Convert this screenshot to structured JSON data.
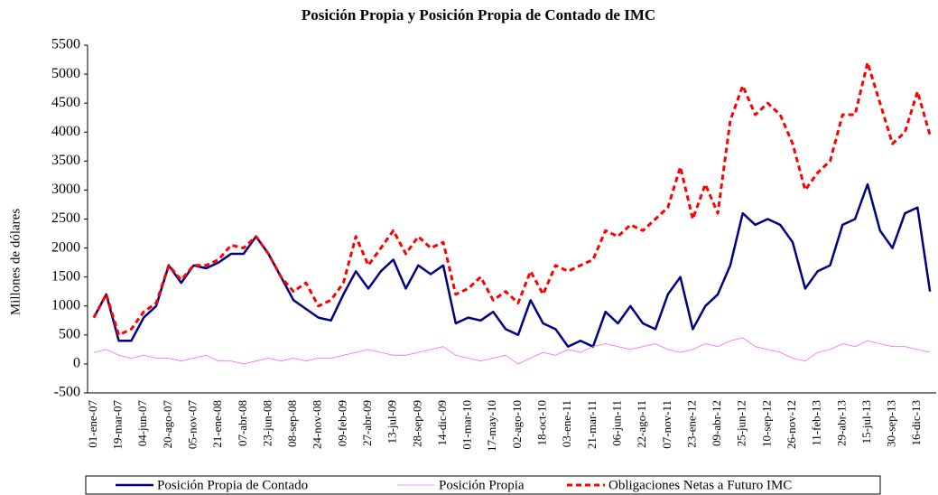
{
  "chart_data": {
    "type": "line",
    "title": "Posición Propia y Posición Propia de Contado de IMC",
    "y_label": "Millones de dólares",
    "categories": [
      "01-ene-07",
      null,
      "19-mar-07",
      null,
      "04-jun-07",
      null,
      "20-ago-07",
      null,
      "05-nov-07",
      null,
      "21-ene-08",
      null,
      "07-abr-08",
      null,
      "23-jun-08",
      null,
      "08-sep-08",
      null,
      "24-nov-08",
      null,
      "09-feb-09",
      null,
      "27-abr-09",
      null,
      "13-jul-09",
      null,
      "28-sep-09",
      null,
      "14-dic-09",
      null,
      "01-mar-10",
      null,
      "17-may-10",
      null,
      "02-ago-10",
      null,
      "18-oct-10",
      null,
      "03-ene-11",
      null,
      "21-mar-11",
      null,
      "06-jun-11",
      null,
      "22-ago-11",
      null,
      "07-nov-11",
      null,
      "23-ene-12",
      null,
      "09-abr-12",
      null,
      "25-jun-12",
      null,
      "10-sep-12",
      null,
      "26-nov-12",
      null,
      "11-feb-13",
      null,
      "29-abr-13",
      null,
      "15-jul-13",
      null,
      "30-sep-13",
      null,
      "16-dic-13",
      null
    ],
    "series": [
      {
        "name": "Posición Propia de Contado",
        "color": "#000080",
        "values": [
          800,
          1200,
          400,
          400,
          800,
          1000,
          1700,
          1400,
          1700,
          1650,
          1750,
          1900,
          1900,
          2200,
          1900,
          1500,
          1100,
          950,
          800,
          750,
          1200,
          1600,
          1300,
          1600,
          1800,
          1300,
          1700,
          1550,
          1700,
          700,
          800,
          750,
          900,
          600,
          500,
          1100,
          700,
          600,
          300,
          400,
          300,
          900,
          700,
          1000,
          700,
          600,
          1200,
          1500,
          600,
          1000,
          1200,
          1700,
          2600,
          2400,
          2500,
          2400,
          2100,
          1300,
          1600,
          1700,
          2400,
          2500,
          3100,
          2300,
          2000,
          2600,
          2700,
          1250
        ]
      },
      {
        "name": "Posición Propia",
        "color": "#ff66ff",
        "values": [
          200,
          250,
          150,
          100,
          150,
          100,
          100,
          50,
          100,
          150,
          50,
          50,
          0,
          50,
          100,
          50,
          100,
          50,
          100,
          100,
          150,
          200,
          250,
          200,
          150,
          150,
          200,
          250,
          300,
          150,
          100,
          50,
          100,
          150,
          0,
          100,
          200,
          150,
          250,
          200,
          300,
          350,
          300,
          250,
          300,
          350,
          250,
          200,
          250,
          350,
          300,
          400,
          450,
          300,
          250,
          200,
          100,
          50,
          200,
          250,
          350,
          300,
          400,
          350,
          300,
          300,
          250,
          200
        ]
      },
      {
        "name": "Obligaciones Netas a Futuro IMC",
        "color": "#ff0000",
        "values": [
          800,
          1200,
          500,
          600,
          900,
          1050,
          1700,
          1450,
          1700,
          1700,
          1800,
          2050,
          2000,
          2200,
          1900,
          1500,
          1250,
          1400,
          1000,
          1100,
          1400,
          2200,
          1700,
          2000,
          2300,
          1900,
          2200,
          2000,
          2100,
          1200,
          1300,
          1500,
          1100,
          1250,
          1050,
          1600,
          1200,
          1700,
          1600,
          1700,
          1800,
          2300,
          2200,
          2400,
          2300,
          2500,
          2700,
          3400,
          2500,
          3100,
          2600,
          4200,
          4800,
          4300,
          4500,
          4300,
          3800,
          3000,
          3300,
          3500,
          4300,
          4300,
          5200,
          4500,
          3800,
          4000,
          4700,
          3950
        ]
      }
    ],
    "ylim": [
      -500,
      5500
    ],
    "yticks": [
      -500,
      0,
      500,
      1000,
      1500,
      2000,
      2500,
      3000,
      3500,
      4000,
      4500,
      5000,
      5500
    ],
    "grid": false,
    "legend": "bottom"
  }
}
